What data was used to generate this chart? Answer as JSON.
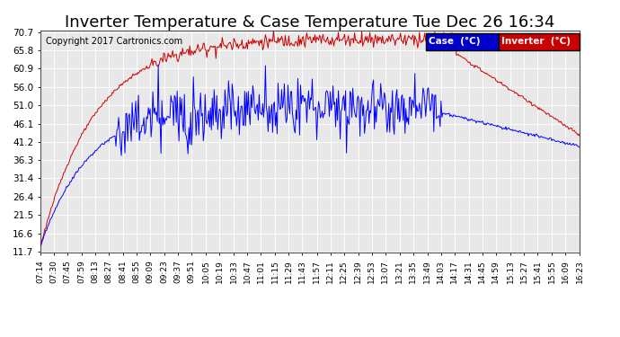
{
  "title": "Inverter Temperature & Case Temperature Tue Dec 26 16:34",
  "copyright": "Copyright 2017 Cartronics.com",
  "background_color": "#ffffff",
  "plot_bg_color": "#e8e8e8",
  "grid_color": "#ffffff",
  "y_ticks": [
    11.7,
    16.6,
    21.5,
    26.4,
    31.4,
    36.3,
    41.2,
    46.1,
    51.0,
    56.0,
    60.9,
    65.8,
    70.7
  ],
  "y_min": 11.7,
  "y_max": 70.7,
  "case_color": "#0000ff",
  "inverter_color": "#cc0000",
  "legend_case_bg": "#0000cc",
  "legend_inverter_bg": "#cc0000",
  "legend_text_color": "#ffffff",
  "title_fontsize": 13,
  "copyright_fontsize": 7,
  "x_label_fontsize": 6.5,
  "y_label_fontsize": 7.5,
  "x_tick_labels": [
    "07:14",
    "07:30",
    "07:45",
    "07:59",
    "08:13",
    "08:27",
    "08:41",
    "08:55",
    "09:09",
    "09:23",
    "09:37",
    "09:51",
    "10:05",
    "10:19",
    "10:33",
    "10:47",
    "11:01",
    "11:15",
    "11:29",
    "11:43",
    "11:57",
    "12:11",
    "12:25",
    "12:39",
    "12:53",
    "13:07",
    "13:21",
    "13:35",
    "13:49",
    "14:03",
    "14:17",
    "14:31",
    "14:45",
    "14:59",
    "15:13",
    "15:27",
    "15:41",
    "15:55",
    "16:09",
    "16:23"
  ]
}
